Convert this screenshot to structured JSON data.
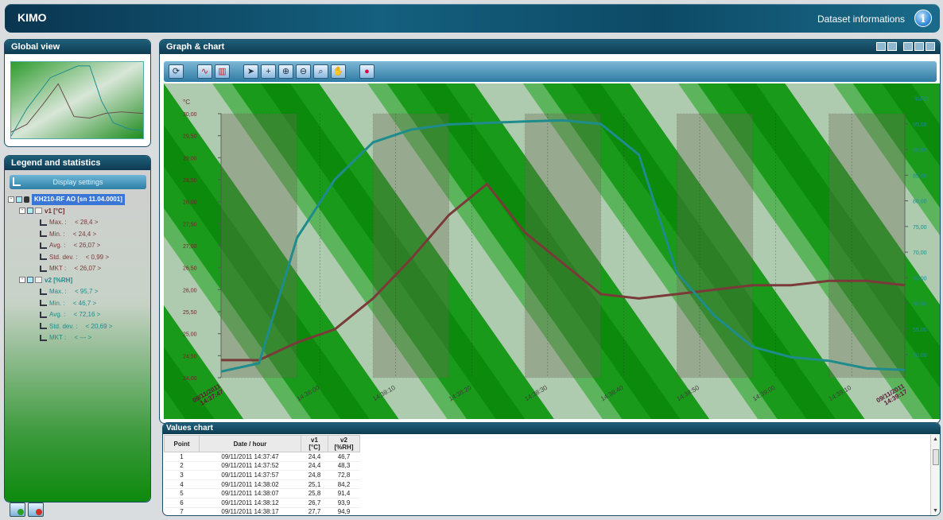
{
  "app": {
    "title": "KIMO",
    "dataset_info": "Dataset informations"
  },
  "panels": {
    "global": "Global view",
    "legend": "Legend and statistics",
    "graph": "Graph & chart",
    "values": "Values chart"
  },
  "legend": {
    "display_settings": "Display settings",
    "device": "KH210-RF AO [sn 11.04.0001]",
    "channels": [
      {
        "name": "v1  [°C]",
        "color": "#7a3a3a",
        "stats": [
          [
            "Max. :",
            "< 28,4 >"
          ],
          [
            "Min. :",
            "< 24,4 >"
          ],
          [
            "Avg. :",
            "< 26,07 >"
          ],
          [
            "Std. dev. :",
            "< 0,99 >"
          ],
          [
            "MKT :",
            "< 26,07 >"
          ]
        ]
      },
      {
        "name": "v2  [%RH]",
        "color": "#1e8c8c",
        "stats": [
          [
            "Max. :",
            "< 95,7 >"
          ],
          [
            "Min. :",
            "< 46,7 >"
          ],
          [
            "Avg. :",
            "< 72,16 >"
          ],
          [
            "Std. dev. :",
            "< 20,69 >"
          ],
          [
            "MKT :",
            "< --- >"
          ]
        ]
      }
    ]
  },
  "chart_data": {
    "type": "line",
    "left_axis": {
      "label": "°C",
      "ticks": [
        "24,00",
        "24,50",
        "25,00",
        "25,50",
        "26,00",
        "26,50",
        "27,00",
        "27,50",
        "28,00",
        "28,50",
        "29,00",
        "29,50",
        "30,00"
      ],
      "range": [
        24.0,
        30.0
      ]
    },
    "right_axis": {
      "label": "%RH",
      "ticks": [
        "50,00",
        "55,00",
        "60,00",
        "65,00",
        "70,00",
        "75,00",
        "80,00",
        "85,00",
        "90,00",
        "95,00"
      ],
      "range": [
        45.5,
        97.0
      ]
    },
    "x_range": [
      "14:37:47",
      "14:39:17"
    ],
    "x_ticks": [
      "14:38:00",
      "14:38:10",
      "14:38:20",
      "14:38:30",
      "14:38:40",
      "14:38:50",
      "14:39:00",
      "14:39:10"
    ],
    "x_start_label": [
      "09/11/2011",
      "14:37:47"
    ],
    "x_end_label": [
      "09/11/2011",
      "14:39:17"
    ],
    "series": [
      {
        "name": "v1",
        "color": "#7a3a3a",
        "x": [
          "14:37:47",
          "14:37:52",
          "14:37:57",
          "14:38:02",
          "14:38:07",
          "14:38:12",
          "14:38:17",
          "14:38:22",
          "14:38:27",
          "14:38:32",
          "14:38:37",
          "14:38:42",
          "14:38:47",
          "14:38:52",
          "14:38:57",
          "14:39:02",
          "14:39:07",
          "14:39:12",
          "14:39:17"
        ],
        "y": [
          24.4,
          24.4,
          24.8,
          25.1,
          25.8,
          26.7,
          27.7,
          28.4,
          27.3,
          26.6,
          25.9,
          25.8,
          25.9,
          26.0,
          26.1,
          26.1,
          26.2,
          26.2,
          26.1
        ]
      },
      {
        "name": "v2",
        "color": "#1e8c8c",
        "x": [
          "14:37:47",
          "14:37:52",
          "14:37:57",
          "14:38:02",
          "14:38:07",
          "14:38:12",
          "14:38:17",
          "14:38:22",
          "14:38:27",
          "14:38:32",
          "14:38:37",
          "14:38:42",
          "14:38:47",
          "14:38:52",
          "14:38:57",
          "14:39:02",
          "14:39:07",
          "14:39:12",
          "14:39:17"
        ],
        "y": [
          46.7,
          48.3,
          72.8,
          84.2,
          91.4,
          93.9,
          94.9,
          95.2,
          95.5,
          95.7,
          95.0,
          89.0,
          66.0,
          57.5,
          51.5,
          49.5,
          48.8,
          47.3,
          47.0
        ]
      }
    ]
  },
  "table": {
    "headers": [
      "Point",
      "Date / hour",
      "v1  [°C]",
      "v2  [%RH]"
    ],
    "rows": [
      [
        "1",
        "09/11/2011 14:37:47",
        "24,4",
        "46,7"
      ],
      [
        "2",
        "09/11/2011 14:37:52",
        "24,4",
        "48,3"
      ],
      [
        "3",
        "09/11/2011 14:37:57",
        "24,8",
        "72,8"
      ],
      [
        "4",
        "09/11/2011 14:38:02",
        "25,1",
        "84,2"
      ],
      [
        "5",
        "09/11/2011 14:38:07",
        "25,8",
        "91,4"
      ],
      [
        "6",
        "09/11/2011 14:38:12",
        "26,7",
        "93,9"
      ],
      [
        "7",
        "09/11/2011 14:38:17",
        "27,7",
        "94,9"
      ]
    ]
  }
}
